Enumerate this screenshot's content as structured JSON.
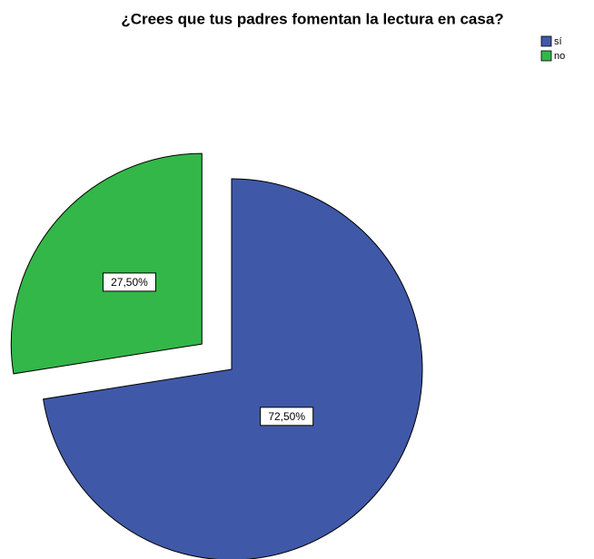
{
  "chart_data": {
    "type": "pie",
    "title": "¿Crees que tus padres fomentan la lectura en casa?",
    "categories": [
      "sí",
      "no"
    ],
    "values": [
      72.5,
      27.5
    ],
    "value_labels": [
      "72,50%",
      "27,50%"
    ],
    "colors": [
      "#3f58a8",
      "#33b748"
    ],
    "exploded": [
      false,
      true
    ],
    "legend": "top-right"
  }
}
